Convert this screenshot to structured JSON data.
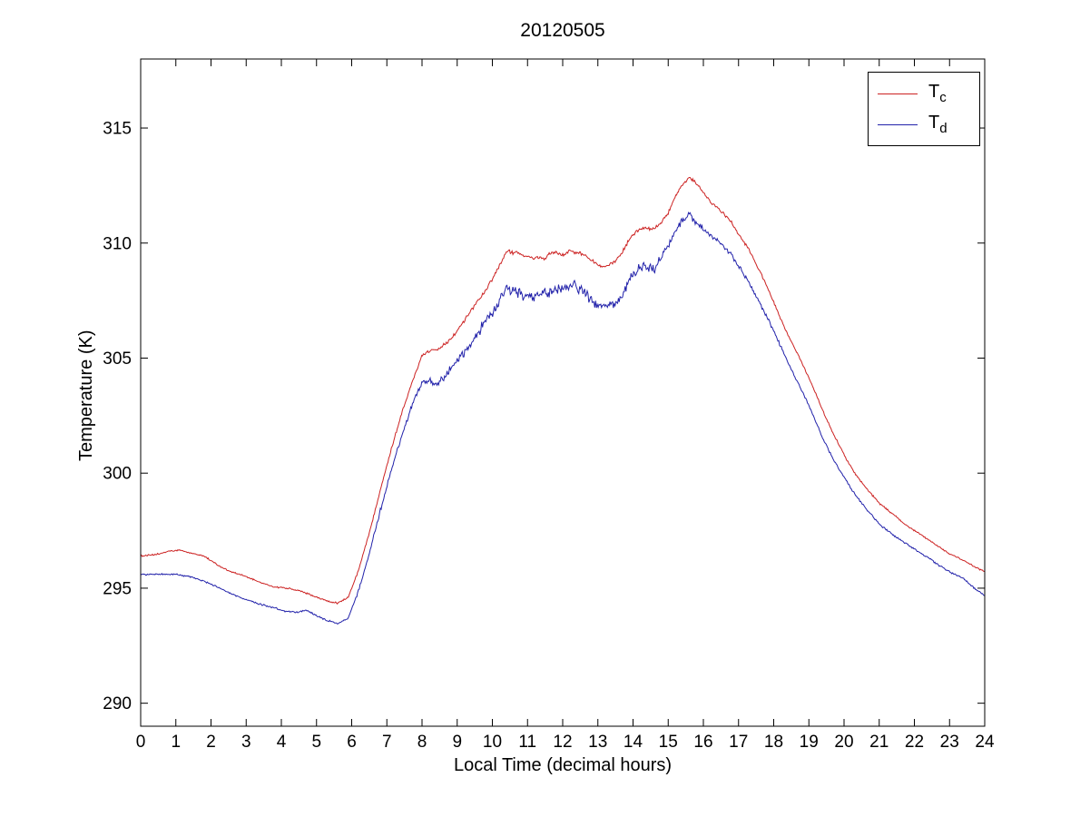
{
  "figure": {
    "background": "#ffffff"
  },
  "chart_data": {
    "type": "line",
    "title": "20120505",
    "xlabel": "Local Time (decimal hours)",
    "ylabel": "Temperature (K)",
    "xlim": [
      0,
      24
    ],
    "ylim": [
      289,
      318
    ],
    "xticks": [
      0,
      1,
      2,
      3,
      4,
      5,
      6,
      7,
      8,
      9,
      10,
      11,
      12,
      13,
      14,
      15,
      16,
      17,
      18,
      19,
      20,
      21,
      22,
      23,
      24
    ],
    "yticks": [
      290,
      295,
      300,
      305,
      310,
      315
    ],
    "grid": false,
    "legend": {
      "position": "top-right",
      "border": true
    },
    "series": [
      {
        "name": "Tc",
        "label": {
          "base": "T",
          "sub": "c"
        },
        "color": "#cc2222",
        "keypoints": [
          [
            0,
            296.4
          ],
          [
            0.4,
            296.45
          ],
          [
            0.8,
            296.6
          ],
          [
            1.1,
            296.65
          ],
          [
            1.5,
            296.5
          ],
          [
            1.8,
            296.4
          ],
          [
            2,
            296.2
          ],
          [
            2.3,
            295.9
          ],
          [
            2.6,
            295.7
          ],
          [
            3,
            295.5
          ],
          [
            3.4,
            295.25
          ],
          [
            3.8,
            295.05
          ],
          [
            4.2,
            295.0
          ],
          [
            4.6,
            294.85
          ],
          [
            5,
            294.6
          ],
          [
            5.3,
            294.45
          ],
          [
            5.6,
            294.35
          ],
          [
            5.9,
            294.6
          ],
          [
            6.2,
            295.8
          ],
          [
            6.5,
            297.4
          ],
          [
            6.8,
            299.2
          ],
          [
            7.1,
            300.9
          ],
          [
            7.4,
            302.5
          ],
          [
            7.7,
            303.9
          ],
          [
            8,
            305.1
          ],
          [
            8.2,
            305.3
          ],
          [
            8.5,
            305.45
          ],
          [
            8.8,
            305.8
          ],
          [
            9.1,
            306.4
          ],
          [
            9.4,
            307.1
          ],
          [
            9.7,
            307.7
          ],
          [
            10,
            308.4
          ],
          [
            10.2,
            309.0
          ],
          [
            10.4,
            309.65
          ],
          [
            10.7,
            309.55
          ],
          [
            11,
            309.4
          ],
          [
            11.2,
            309.35
          ],
          [
            11.5,
            309.35
          ],
          [
            11.7,
            309.6
          ],
          [
            12,
            309.5
          ],
          [
            12.2,
            309.65
          ],
          [
            12.5,
            309.55
          ],
          [
            12.8,
            309.3
          ],
          [
            13,
            309.05
          ],
          [
            13.2,
            309.0
          ],
          [
            13.5,
            309.2
          ],
          [
            13.7,
            309.6
          ],
          [
            13.9,
            310.2
          ],
          [
            14.1,
            310.5
          ],
          [
            14.3,
            310.65
          ],
          [
            14.6,
            310.6
          ],
          [
            14.8,
            310.9
          ],
          [
            15,
            311.3
          ],
          [
            15.2,
            312.0
          ],
          [
            15.4,
            312.5
          ],
          [
            15.6,
            312.85
          ],
          [
            15.8,
            312.6
          ],
          [
            16,
            312.2
          ],
          [
            16.2,
            311.8
          ],
          [
            16.5,
            311.4
          ],
          [
            16.8,
            310.9
          ],
          [
            17,
            310.4
          ],
          [
            17.3,
            309.7
          ],
          [
            17.6,
            308.8
          ],
          [
            17.9,
            307.8
          ],
          [
            18.2,
            306.7
          ],
          [
            18.5,
            305.7
          ],
          [
            18.8,
            304.8
          ],
          [
            19.1,
            303.8
          ],
          [
            19.4,
            302.7
          ],
          [
            19.7,
            301.7
          ],
          [
            20,
            300.8
          ],
          [
            20.3,
            300.0
          ],
          [
            20.6,
            299.4
          ],
          [
            21,
            298.7
          ],
          [
            21.4,
            298.2
          ],
          [
            21.8,
            297.7
          ],
          [
            22.2,
            297.3
          ],
          [
            22.6,
            296.9
          ],
          [
            23,
            296.5
          ],
          [
            23.4,
            296.2
          ],
          [
            23.7,
            295.95
          ],
          [
            24,
            295.7
          ]
        ],
        "noise": [
          [
            0,
            0.04
          ],
          [
            5.5,
            0.04
          ],
          [
            6.5,
            0.06
          ],
          [
            8,
            0.08
          ],
          [
            10,
            0.1
          ],
          [
            13,
            0.1
          ],
          [
            15,
            0.08
          ],
          [
            17,
            0.07
          ],
          [
            19,
            0.05
          ],
          [
            24,
            0.04
          ]
        ]
      },
      {
        "name": "Td",
        "label": {
          "base": "T",
          "sub": "d"
        },
        "color": "#2222aa",
        "keypoints": [
          [
            0,
            295.6
          ],
          [
            0.5,
            295.6
          ],
          [
            1,
            295.6
          ],
          [
            1.4,
            295.5
          ],
          [
            1.8,
            295.3
          ],
          [
            2.1,
            295.1
          ],
          [
            2.5,
            294.8
          ],
          [
            3,
            294.5
          ],
          [
            3.4,
            294.3
          ],
          [
            3.8,
            294.15
          ],
          [
            4.1,
            294.0
          ],
          [
            4.4,
            293.95
          ],
          [
            4.7,
            294.05
          ],
          [
            5,
            293.8
          ],
          [
            5.3,
            293.6
          ],
          [
            5.6,
            293.45
          ],
          [
            5.9,
            293.7
          ],
          [
            6.2,
            294.9
          ],
          [
            6.5,
            296.5
          ],
          [
            6.8,
            298.3
          ],
          [
            7.1,
            300.0
          ],
          [
            7.4,
            301.5
          ],
          [
            7.7,
            302.9
          ],
          [
            8,
            303.9
          ],
          [
            8.2,
            304.0
          ],
          [
            8.4,
            303.8
          ],
          [
            8.7,
            304.3
          ],
          [
            9,
            304.9
          ],
          [
            9.3,
            305.5
          ],
          [
            9.6,
            306.1
          ],
          [
            10,
            307.0
          ],
          [
            10.2,
            307.5
          ],
          [
            10.4,
            308.0
          ],
          [
            10.7,
            307.8
          ],
          [
            11,
            307.7
          ],
          [
            11.3,
            307.7
          ],
          [
            11.6,
            307.9
          ],
          [
            12,
            308.0
          ],
          [
            12.3,
            308.15
          ],
          [
            12.6,
            307.9
          ],
          [
            12.9,
            307.4
          ],
          [
            13.2,
            307.25
          ],
          [
            13.5,
            307.4
          ],
          [
            13.7,
            307.7
          ],
          [
            13.9,
            308.4
          ],
          [
            14.1,
            308.8
          ],
          [
            14.3,
            309.0
          ],
          [
            14.6,
            308.9
          ],
          [
            14.8,
            309.4
          ],
          [
            15,
            309.9
          ],
          [
            15.2,
            310.5
          ],
          [
            15.4,
            311.0
          ],
          [
            15.6,
            311.25
          ],
          [
            15.8,
            310.9
          ],
          [
            16,
            310.6
          ],
          [
            16.2,
            310.3
          ],
          [
            16.5,
            310.0
          ],
          [
            16.8,
            309.5
          ],
          [
            17,
            309.0
          ],
          [
            17.3,
            308.3
          ],
          [
            17.6,
            307.4
          ],
          [
            17.9,
            306.5
          ],
          [
            18.2,
            305.5
          ],
          [
            18.5,
            304.5
          ],
          [
            18.8,
            303.6
          ],
          [
            19.1,
            302.6
          ],
          [
            19.4,
            301.5
          ],
          [
            19.7,
            300.6
          ],
          [
            20,
            299.8
          ],
          [
            20.3,
            299.1
          ],
          [
            20.6,
            298.5
          ],
          [
            21,
            297.8
          ],
          [
            21.4,
            297.3
          ],
          [
            21.8,
            296.9
          ],
          [
            22.2,
            296.5
          ],
          [
            22.6,
            296.1
          ],
          [
            23,
            295.7
          ],
          [
            23.4,
            295.4
          ],
          [
            23.7,
            295.0
          ],
          [
            24,
            294.7
          ]
        ],
        "noise": [
          [
            0,
            0.04
          ],
          [
            5.5,
            0.05
          ],
          [
            6.5,
            0.08
          ],
          [
            8,
            0.18
          ],
          [
            9,
            0.25
          ],
          [
            10,
            0.28
          ],
          [
            13,
            0.28
          ],
          [
            14,
            0.3
          ],
          [
            15,
            0.2
          ],
          [
            16,
            0.15
          ],
          [
            17,
            0.12
          ],
          [
            18,
            0.08
          ],
          [
            19,
            0.06
          ],
          [
            24,
            0.05
          ]
        ]
      }
    ]
  }
}
